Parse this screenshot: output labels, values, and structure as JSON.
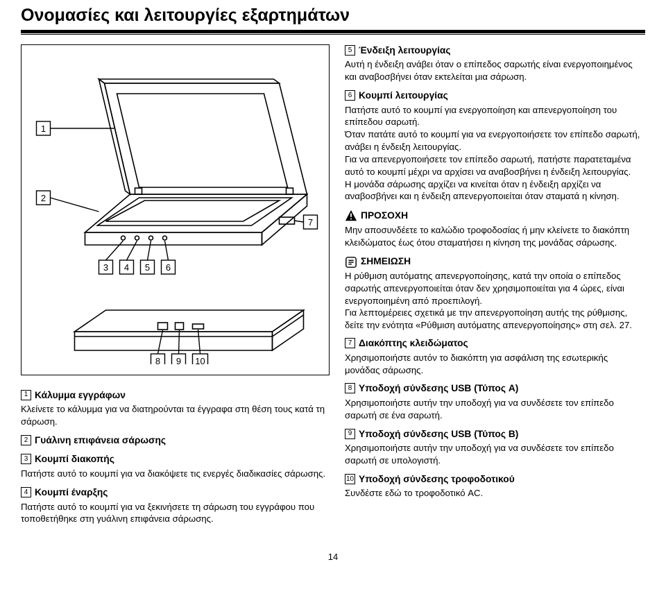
{
  "title": "Ονομασίες και λειτουργίες εξαρτημάτων",
  "page_number": "14",
  "callouts": [
    "1",
    "2",
    "3",
    "4",
    "5",
    "6",
    "7",
    "8",
    "9",
    "10"
  ],
  "left_items": [
    {
      "num": "1",
      "heading": "Κάλυμμα εγγράφων",
      "body": "Κλείνετε το κάλυμμα για να διατηρούνται τα έγγραφα στη θέση τους κατά τη σάρωση."
    },
    {
      "num": "2",
      "heading": "Γυάλινη επιφάνεια σάρωσης",
      "body": ""
    },
    {
      "num": "3",
      "heading": "Κουμπί διακοπής",
      "body": "Πατήστε αυτό το κουμπί για να διακόψετε τις ενεργές διαδικασίες σάρωσης."
    },
    {
      "num": "4",
      "heading": "Κουμπί έναρξης",
      "body": "Πατήστε αυτό το κουμπί για να ξεκινήσετε τη σάρωση του εγγράφου που τοποθετήθηκε στη γυάλινη επιφάνεια σάρωσης."
    }
  ],
  "right_items": [
    {
      "num": "5",
      "heading": "Ένδειξη λειτουργίας",
      "body": "Αυτή η ένδειξη ανάβει όταν ο επίπεδος σαρωτής είναι ενεργοποιημένος και αναβοσβήνει όταν εκτελείται μια σάρωση."
    },
    {
      "num": "6",
      "heading": "Κουμπί λειτουργίας",
      "body": "Πατήστε αυτό το κουμπί για ενεργοποίηση και απενεργοποίηση του επίπεδου σαρωτή.\nΌταν πατάτε αυτό το κουμπί για να ενεργοποιήσετε τον επίπεδο σαρωτή, ανάβει η ένδειξη λειτουργίας.\nΓια να απενεργοποιήσετε τον επίπεδο σαρωτή, πατήστε παρατεταμένα αυτό το κουμπί μέχρι να αρχίσει να αναβοσβήνει η ένδειξη λειτουργίας.\nΗ μονάδα σάρωσης αρχίζει να κινείται όταν η ένδειξη αρχίζει να αναβοσβήνει και η ένδειξη απενεργοποιείται όταν σταματά η κίνηση."
    }
  ],
  "caution": {
    "label": "ΠΡΟΣΟΧΗ",
    "body": "Μην αποσυνδέετε το καλώδιο τροφοδοσίας ή μην κλείνετε το διακόπτη κλειδώματος έως ότου σταματήσει η κίνηση της μονάδας σάρωσης."
  },
  "note": {
    "label": "ΣΗΜΕΙΩΣΗ",
    "body": "Η ρύθμιση αυτόματης απενεργοποίησης, κατά την οποία ο επίπεδος σαρωτής απενεργοποιείται όταν δεν χρησιμοποιείται για 4 ώρες, είναι ενεργοποιημένη από προεπιλογή.\nΓια λεπτομέρειες σχετικά με την απενεργοποίηση αυτής της ρύθμισης, δείτε την ενότητα «Ρύθμιση αυτόματης απενεργοποίησης» στη σελ. 27."
  },
  "right_items2": [
    {
      "num": "7",
      "heading": "Διακόπτης κλειδώματος",
      "body": "Χρησιμοποιήστε αυτόν το διακόπτη για ασφάλιση της εσωτερικής μονάδας σάρωσης."
    },
    {
      "num": "8",
      "heading": "Υποδοχή σύνδεσης USB (Τύπος A)",
      "body": "Χρησιμοποιήστε αυτήν την υποδοχή για να συνδέσετε τον επίπεδο σαρωτή σε ένα σαρωτή."
    },
    {
      "num": "9",
      "heading": "Υποδοχή σύνδεσης USB (Τύπος B)",
      "body": "Χρησιμοποιήστε αυτήν την υποδοχή για να συνδέσετε τον επίπεδο σαρωτή σε υπολογιστή."
    },
    {
      "num": "10",
      "heading": "Υποδοχή σύνδεσης τροφοδοτικού",
      "body": "Συνδέστε εδώ το τροφοδοτικό AC."
    }
  ]
}
